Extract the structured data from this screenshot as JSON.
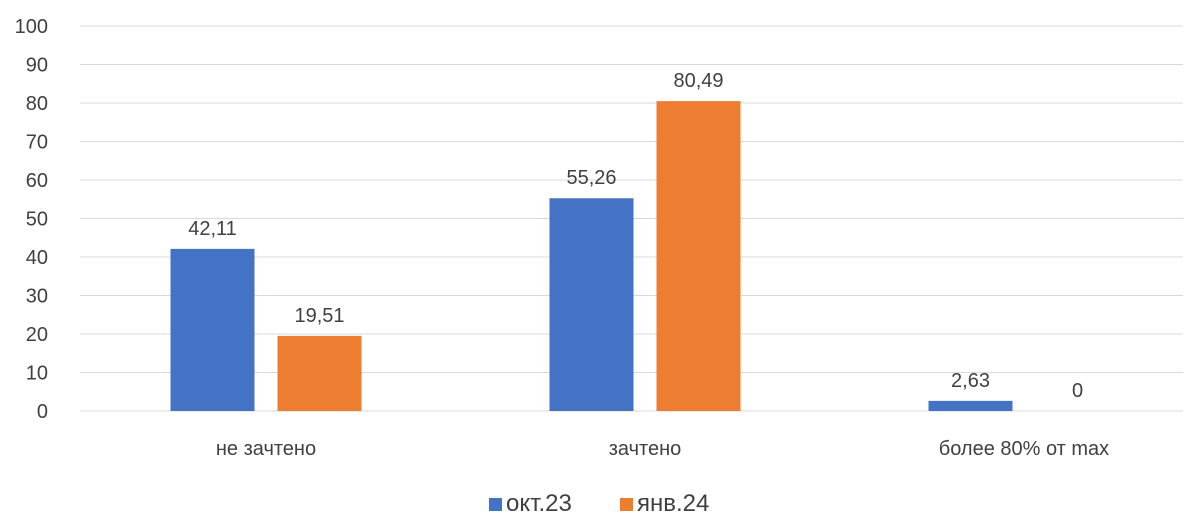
{
  "chart_data": {
    "type": "bar",
    "categories": [
      "не зачтено",
      "зачтено",
      "более 80% от max"
    ],
    "series": [
      {
        "name": "окт.23",
        "values": [
          42.11,
          55.26,
          2.63
        ],
        "labels": [
          "42,11",
          "55,26",
          "2,63"
        ],
        "color": "#4472C4"
      },
      {
        "name": "янв.24",
        "values": [
          19.51,
          80.49,
          0
        ],
        "labels": [
          "19,51",
          "80,49",
          "0"
        ],
        "color": "#ED7D31"
      }
    ],
    "ylim": [
      0,
      100
    ],
    "yticks": [
      0,
      10,
      20,
      30,
      40,
      50,
      60,
      70,
      80,
      90,
      100
    ],
    "grid": true,
    "gridColor": "#D9D9D9",
    "legend": "bottom-center",
    "title": "",
    "xlabel": "",
    "ylabel": ""
  }
}
